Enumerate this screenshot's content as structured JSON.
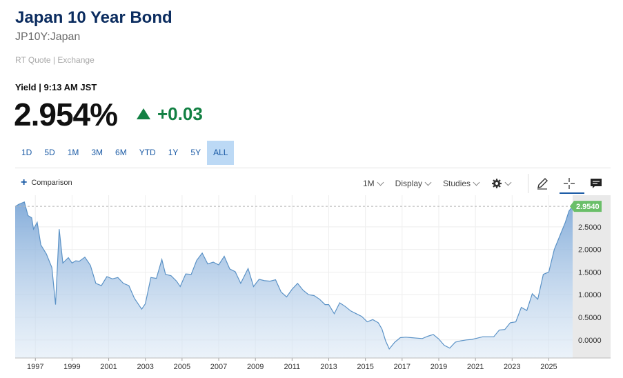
{
  "header": {
    "title": "Japan 10 Year Bond",
    "symbol": "JP10Y:Japan",
    "quote_source": "RT Quote | Exchange",
    "yield_label": "Yield | 9:13 AM JST",
    "price": "2.954%",
    "change": "+0.03"
  },
  "ranges": [
    "1D",
    "5D",
    "1M",
    "3M",
    "6M",
    "YTD",
    "1Y",
    "5Y",
    "ALL"
  ],
  "active_range": "ALL",
  "toolbar": {
    "comparison": "Comparison",
    "interval": "1M",
    "display": "Display",
    "studies": "Studies"
  },
  "icons": {
    "settings": "gear-icon",
    "draw": "pencil-icon",
    "crosshair": "crosshair-icon",
    "events": "comment-icon"
  },
  "colors": {
    "title": "#0b2c5f",
    "up": "#128043",
    "accent": "#1a5aa5",
    "line": "#5b92c6",
    "last_badge": "#6abf69"
  },
  "chart_data": {
    "type": "area",
    "x_ticks": [
      "1997",
      "1999",
      "2001",
      "2003",
      "2005",
      "2007",
      "2009",
      "2011",
      "2013",
      "2015",
      "2017",
      "2019",
      "2021",
      "2023",
      "2025"
    ],
    "y_ticks": [
      "2.5000",
      "2.0000",
      "1.5000",
      "1.0000",
      "0.5000",
      "0.0000"
    ],
    "last_value_label": "2.9540",
    "ylim": [
      -0.4,
      3.2
    ],
    "xlim": [
      1995.9,
      2026.3
    ],
    "series": [
      {
        "x": [
          1995.9,
          1996.1,
          1996.4,
          1996.6,
          1996.8,
          1996.9,
          1997.1,
          1997.3,
          1997.6,
          1997.9,
          1998.1,
          1998.3,
          1998.5,
          1998.8,
          1999.0,
          1999.2,
          1999.4,
          1999.7,
          2000.0,
          2000.3,
          2000.6,
          2000.9,
          2001.2,
          2001.5,
          2001.8,
          2002.1,
          2002.4,
          2002.8,
          2003.0,
          2003.3,
          2003.6,
          2003.9,
          2004.1,
          2004.4,
          2004.7,
          2004.9,
          2005.2,
          2005.5,
          2005.8,
          2006.1,
          2006.4,
          2006.7,
          2007.0,
          2007.3,
          2007.6,
          2007.9,
          2008.2,
          2008.6,
          2008.9,
          2009.2,
          2009.5,
          2009.8,
          2010.1,
          2010.4,
          2010.7,
          2011.0,
          2011.3,
          2011.6,
          2011.9,
          2012.2,
          2012.5,
          2012.8,
          2013.0,
          2013.3,
          2013.6,
          2013.9,
          2014.2,
          2014.5,
          2014.8,
          2015.1,
          2015.4,
          2015.7,
          2015.9,
          2016.1,
          2016.3,
          2016.6,
          2016.9,
          2017.2,
          2017.5,
          2017.8,
          2018.1,
          2018.4,
          2018.7,
          2019.0,
          2019.3,
          2019.6,
          2019.9,
          2020.2,
          2020.5,
          2020.8,
          2021.1,
          2021.4,
          2021.7,
          2022.0,
          2022.3,
          2022.6,
          2022.9,
          2023.2,
          2023.5,
          2023.8,
          2024.1,
          2024.4,
          2024.7,
          2025.0,
          2025.3,
          2025.6,
          2025.9,
          2026.1,
          2026.3
        ],
        "y": [
          2.95,
          3.0,
          3.05,
          2.75,
          2.7,
          2.45,
          2.6,
          2.1,
          1.9,
          1.6,
          0.78,
          2.45,
          1.7,
          1.82,
          1.7,
          1.75,
          1.74,
          1.83,
          1.65,
          1.25,
          1.2,
          1.4,
          1.35,
          1.38,
          1.25,
          1.2,
          0.92,
          0.68,
          0.8,
          1.38,
          1.36,
          1.78,
          1.45,
          1.42,
          1.3,
          1.18,
          1.46,
          1.45,
          1.76,
          1.92,
          1.68,
          1.72,
          1.66,
          1.85,
          1.57,
          1.51,
          1.25,
          1.58,
          1.18,
          1.34,
          1.31,
          1.3,
          1.33,
          1.06,
          0.95,
          1.12,
          1.25,
          1.1,
          1.0,
          0.98,
          0.9,
          0.78,
          0.78,
          0.58,
          0.82,
          0.74,
          0.64,
          0.58,
          0.52,
          0.4,
          0.45,
          0.38,
          0.24,
          -0.02,
          -0.2,
          -0.05,
          0.05,
          0.06,
          0.05,
          0.04,
          0.03,
          0.08,
          0.12,
          0.02,
          -0.12,
          -0.18,
          -0.05,
          -0.02,
          0.0,
          0.01,
          0.04,
          0.07,
          0.07,
          0.07,
          0.22,
          0.23,
          0.38,
          0.4,
          0.72,
          0.65,
          1.02,
          0.9,
          1.45,
          1.5,
          2.0,
          2.3,
          2.6,
          2.85,
          2.954
        ]
      }
    ]
  }
}
